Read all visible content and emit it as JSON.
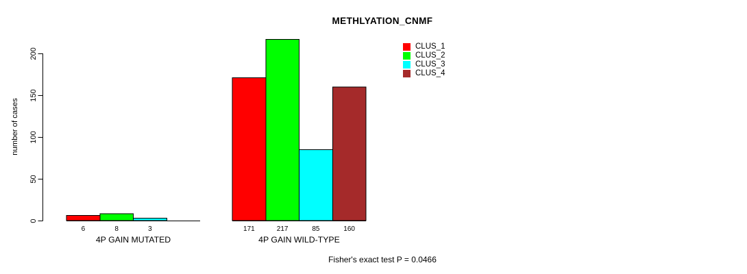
{
  "figure": {
    "title": "METHLYATION_CNMF",
    "y_axis_label": "number of cases",
    "footer": "Fisher's exact test P = 0.0466"
  },
  "chart_data": {
    "type": "bar",
    "title": "METHLYATION_CNMF",
    "xlabel": "",
    "ylabel": "number of cases",
    "categories": [
      "4P GAIN MUTATED",
      "4P GAIN WILD-TYPE"
    ],
    "series": [
      {
        "name": "CLUS_1",
        "color": "#ff0000",
        "values": [
          6,
          171
        ]
      },
      {
        "name": "CLUS_2",
        "color": "#00ff00",
        "values": [
          8,
          217
        ]
      },
      {
        "name": "CLUS_3",
        "color": "#00ffff",
        "values": [
          3,
          85
        ]
      },
      {
        "name": "CLUS_4",
        "color": "#a52a2a",
        "values": [
          0,
          160
        ]
      }
    ],
    "yticks": [
      0,
      50,
      100,
      150,
      200
    ],
    "ylim": [
      0,
      220
    ],
    "grid": false,
    "legend_position": "top-right-inside",
    "bar_value_labels_shown": true,
    "zero_value_labels_hidden": true,
    "annotation": "Fisher's exact test P = 0.0466",
    "bar_border_color": "#000000",
    "axis_color": "#000000"
  }
}
